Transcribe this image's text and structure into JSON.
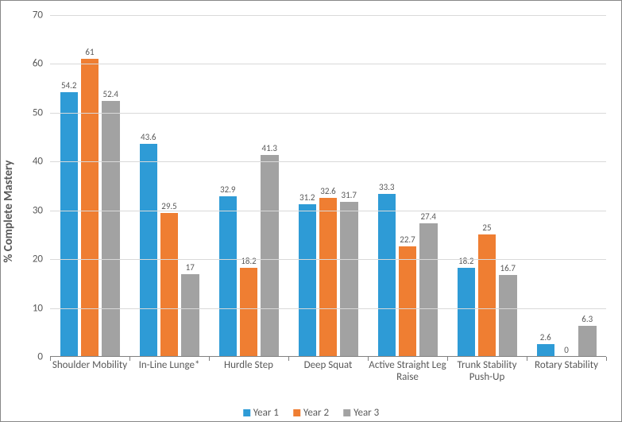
{
  "chart": {
    "type": "bar",
    "y_axis_title": "% Complete Mastery",
    "ylim": [
      0,
      70
    ],
    "ytick_step": 10,
    "grid_color": "#d9d9d9",
    "axis_line_color": "#808080",
    "tick_label_color": "#595959",
    "axis_title_color": "#595959",
    "axis_title_fontsize": 15,
    "tick_label_fontsize": 13,
    "data_label_fontsize": 11,
    "background_color": "#ffffff",
    "border_color": "#888888",
    "categories": [
      "Shoulder Mobility",
      "In-Line Lunge*",
      "Hurdle Step",
      "Deep Squat",
      "Active Straight Leg Raise",
      "Trunk Stability Push-Up",
      "Rotary Stability"
    ],
    "series": [
      {
        "name": "Year 1",
        "color": "#2e9bd6",
        "values": [
          54.2,
          43.6,
          32.9,
          31.2,
          33.3,
          18.2,
          2.6
        ]
      },
      {
        "name": "Year 2",
        "color": "#ef7e32",
        "values": [
          61,
          29.5,
          18.2,
          32.6,
          22.7,
          25,
          0
        ]
      },
      {
        "name": "Year 3",
        "color": "#a2a2a2",
        "values": [
          52.4,
          17,
          41.3,
          31.7,
          27.4,
          16.7,
          6.3
        ]
      }
    ],
    "bar_gap_ratio": 0.05,
    "group_gap_ratio": 0.25
  }
}
